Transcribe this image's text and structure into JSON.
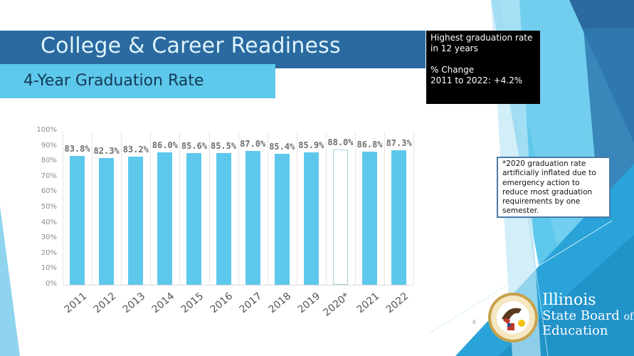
{
  "header": {
    "title": "College & Career Readiness",
    "subtitle": "4-Year Graduation Rate"
  },
  "callout": {
    "line1": "Highest graduation rate",
    "line2": "in 12 years",
    "line3": "% Change",
    "line4": "2011 to 2022: +4.2%"
  },
  "footnote": {
    "text": "*2020 graduation rate artificially inflated due to emergency action to reduce most graduation requirements by one semester."
  },
  "footer": {
    "page_number": "6",
    "org_line1": "Illinois",
    "org_line2": "State Board",
    "org_line2b": "of",
    "org_line3": "Education"
  },
  "colors": {
    "header_dark_blue": "#2a6aa0",
    "subtitle_light_blue": "#5ec8ec",
    "bar_color": "#5ec8ec",
    "callout_bg": "#000000"
  },
  "chart_data": {
    "type": "bar",
    "title": "4-Year Graduation Rate",
    "xlabel": "",
    "ylabel": "",
    "ylim": [
      0,
      100
    ],
    "yticks": [
      "0%",
      "10%",
      "20%",
      "30%",
      "40%",
      "50%",
      "60%",
      "70%",
      "80%",
      "90%",
      "100%"
    ],
    "categories": [
      "2011",
      "2012",
      "2013",
      "2014",
      "2015",
      "2016",
      "2017",
      "2018",
      "2019",
      "2020*",
      "2021",
      "2022"
    ],
    "values": [
      83.8,
      82.3,
      83.2,
      86.0,
      85.6,
      85.5,
      87.0,
      85.4,
      85.9,
      88.0,
      86.8,
      87.3
    ],
    "labels": [
      "83.8%",
      "82.3%",
      "83.2%",
      "86.0%",
      "85.6%",
      "85.5%",
      "87.0%",
      "85.4%",
      "85.9%",
      "88.0%",
      "86.8%",
      "87.3%"
    ],
    "highlight": {
      "category": "2020*",
      "style": "hollow outline",
      "note": "artificially inflated"
    },
    "grid": "vertical category separators",
    "legend": "none"
  }
}
